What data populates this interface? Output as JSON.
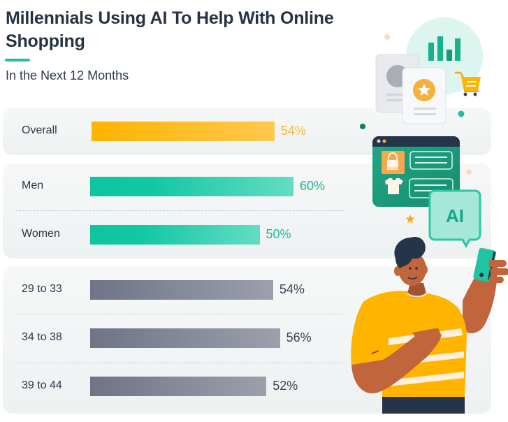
{
  "chart_data": {
    "type": "bar",
    "orientation": "horizontal",
    "title": "Millennials Using AI To Help With Online Shopping",
    "subtitle": "In the Next 12 Months",
    "xlim": [
      0,
      100
    ],
    "value_format": "percent",
    "groups": [
      {
        "name": "overall",
        "color": "#ffb400",
        "label_color": "#f7b73a",
        "items": [
          {
            "label": "Overall",
            "value": 54,
            "value_label": "54%"
          }
        ]
      },
      {
        "name": "gender",
        "color": "#12c5a3",
        "label_color": "#22b79b",
        "items": [
          {
            "label": "Men",
            "value": 60,
            "value_label": "60%"
          },
          {
            "label": "Women",
            "value": 50,
            "value_label": "50%"
          }
        ]
      },
      {
        "name": "age",
        "color": "#7b8090",
        "label_color": "#3b4352",
        "items": [
          {
            "label": "29 to 33",
            "value": 54,
            "value_label": "54%"
          },
          {
            "label": "34 to 38",
            "value": 56,
            "value_label": "56%"
          },
          {
            "label": "39 to 44",
            "value": 52,
            "value_label": "52%"
          }
        ]
      }
    ]
  },
  "illustration": {
    "ai_badge": "AI"
  },
  "colors": {
    "accent": "#1fbf9f",
    "yellow": "#ffb400",
    "gray": "#7b8090"
  }
}
